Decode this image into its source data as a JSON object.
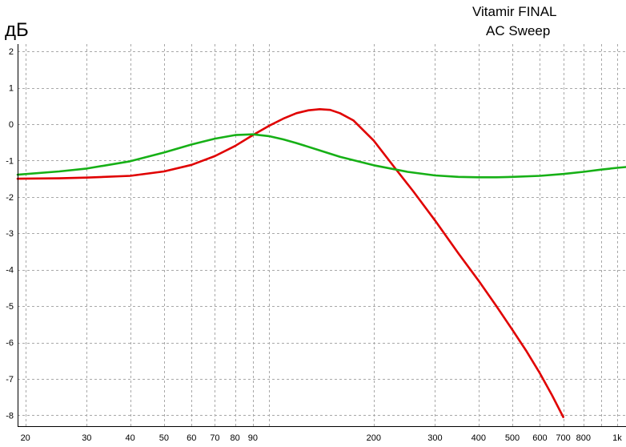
{
  "chart_data": {
    "type": "line",
    "title": "Vitamir FINAL",
    "subtitle": "AC Sweep",
    "ylabel": "дБ",
    "xlabel": "",
    "xscale": "log",
    "xlim": [
      19,
      1060
    ],
    "ylim": [
      -8.3,
      2.2
    ],
    "grid": true,
    "x_ticks": [
      {
        "value": 20,
        "label": "20"
      },
      {
        "value": 30,
        "label": "30"
      },
      {
        "value": 40,
        "label": "40"
      },
      {
        "value": 50,
        "label": "50"
      },
      {
        "value": 60,
        "label": "60"
      },
      {
        "value": 70,
        "label": "70"
      },
      {
        "value": 80,
        "label": "80"
      },
      {
        "value": 90,
        "label": "90"
      },
      {
        "value": 200,
        "label": "200"
      },
      {
        "value": 300,
        "label": "300"
      },
      {
        "value": 400,
        "label": "400"
      },
      {
        "value": 500,
        "label": "500"
      },
      {
        "value": 600,
        "label": "600"
      },
      {
        "value": 700,
        "label": "700"
      },
      {
        "value": 800,
        "label": "800"
      },
      {
        "value": 1000,
        "label": "1k"
      }
    ],
    "x_gridlines": [
      20,
      30,
      40,
      50,
      60,
      70,
      80,
      90,
      100,
      200,
      300,
      400,
      500,
      600,
      700,
      800,
      900,
      1000
    ],
    "y_ticks": [
      2,
      1,
      0,
      -1,
      -2,
      -3,
      -4,
      -5,
      -6,
      -7,
      -8
    ],
    "y_tick_labels": [
      "2",
      "1",
      "0",
      "-1",
      "-2",
      "-3",
      "-4",
      "-5",
      "-6",
      "-7",
      "-8"
    ],
    "series": [
      {
        "color": "#e00000",
        "x": [
          19,
          25,
          30,
          40,
          50,
          60,
          70,
          80,
          90,
          100,
          110,
          120,
          130,
          140,
          150,
          160,
          175,
          200,
          230,
          260,
          300,
          350,
          400,
          450,
          500,
          550,
          600,
          650,
          700
        ],
        "y": [
          -1.5,
          -1.49,
          -1.47,
          -1.42,
          -1.3,
          -1.12,
          -0.88,
          -0.6,
          -0.3,
          -0.05,
          0.15,
          0.3,
          0.38,
          0.41,
          0.39,
          0.3,
          0.1,
          -0.45,
          -1.2,
          -1.85,
          -2.65,
          -3.55,
          -4.3,
          -5.0,
          -5.65,
          -6.25,
          -6.85,
          -7.45,
          -8.05
        ]
      },
      {
        "color": "#16b016",
        "x": [
          19,
          25,
          30,
          40,
          50,
          60,
          70,
          80,
          90,
          100,
          110,
          120,
          140,
          160,
          200,
          250,
          300,
          350,
          400,
          450,
          500,
          600,
          700,
          800,
          900,
          1000,
          1060
        ],
        "y": [
          -1.39,
          -1.3,
          -1.22,
          -1.02,
          -0.78,
          -0.56,
          -0.4,
          -0.3,
          -0.28,
          -0.33,
          -0.42,
          -0.52,
          -0.72,
          -0.9,
          -1.13,
          -1.31,
          -1.41,
          -1.45,
          -1.46,
          -1.46,
          -1.45,
          -1.42,
          -1.37,
          -1.31,
          -1.25,
          -1.2,
          -1.18
        ]
      }
    ]
  }
}
